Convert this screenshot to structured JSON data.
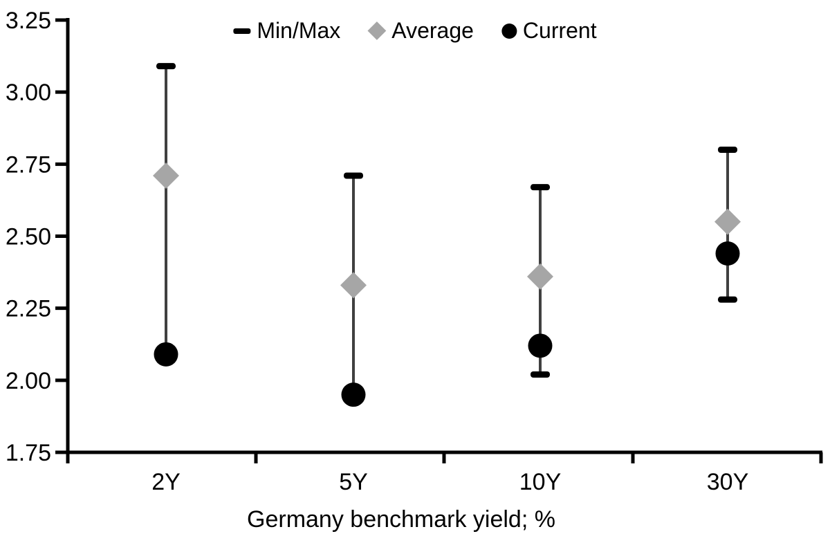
{
  "chart_data": {
    "type": "scatter",
    "subtype": "min-max-range-with-markers",
    "title": "",
    "xlabel": "Germany benchmark yield; %",
    "ylabel": "",
    "categories": [
      "2Y",
      "5Y",
      "10Y",
      "30Y"
    ],
    "series": [
      {
        "name": "Max",
        "values": [
          3.09,
          2.71,
          2.67,
          2.8
        ]
      },
      {
        "name": "Min",
        "values": [
          2.09,
          1.95,
          2.02,
          2.28
        ]
      },
      {
        "name": "Average",
        "values": [
          2.71,
          2.33,
          2.36,
          2.55
        ]
      },
      {
        "name": "Current",
        "values": [
          2.09,
          1.95,
          2.12,
          2.44
        ]
      }
    ],
    "ylim": [
      1.75,
      3.25
    ],
    "ytick_step": 0.25,
    "ytick_labels": [
      "3.25",
      "3.00",
      "2.75",
      "2.50",
      "2.25",
      "2.00",
      "1.75"
    ],
    "grid": false,
    "legend_position": "top-center",
    "legend": [
      {
        "label": "Min/Max",
        "marker": "dash-icon"
      },
      {
        "label": "Average",
        "marker": "diamond-icon"
      },
      {
        "label": "Current",
        "marker": "circle-icon"
      }
    ],
    "colors": {
      "axis": "#000000",
      "caps": "#000000",
      "current": "#000000",
      "average": "#a6a6a6",
      "whisker": "#404040",
      "text": "#000000",
      "background": "#ffffff"
    }
  }
}
